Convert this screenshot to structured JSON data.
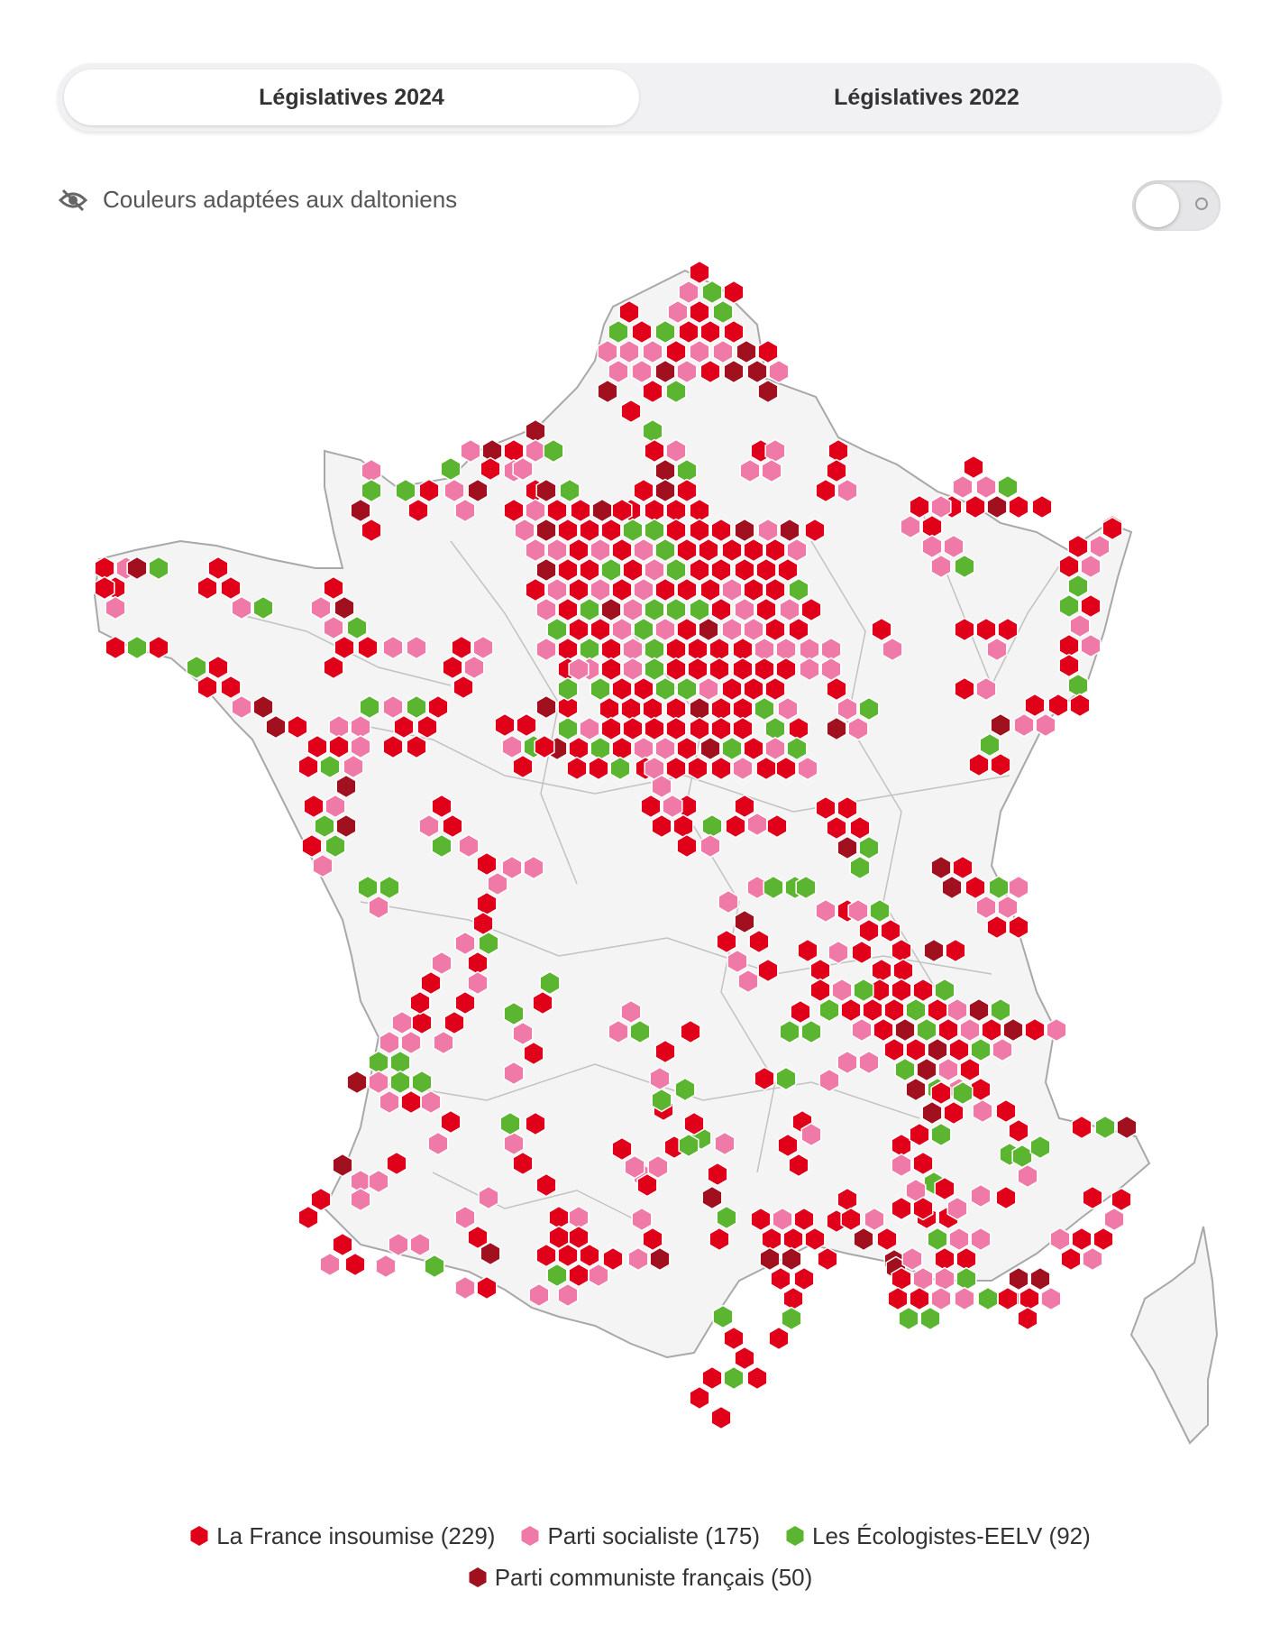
{
  "tabs": [
    {
      "label": "Législatives 2024",
      "active": true
    },
    {
      "label": "Législatives 2022",
      "active": false
    }
  ],
  "a11y": {
    "label": "Couleurs adaptées aux daltoniens",
    "icon": "eye-slash-icon",
    "enabled": false
  },
  "colors": {
    "lfi": "#e0001a",
    "ps": "#ef7aa8",
    "eelv": "#5cb531",
    "pcf": "#a0101e",
    "land": "#f4f4f4",
    "border": "#a8a8a8"
  },
  "legend": [
    {
      "key": "lfi",
      "label": "La France insoumise (229)"
    },
    {
      "key": "ps",
      "label": "Parti socialiste (175)"
    },
    {
      "key": "eelv",
      "label": "Les Écologistes-EELV (92)"
    },
    {
      "key": "pcf",
      "label": "Parti communiste français (50)"
    }
  ]
}
